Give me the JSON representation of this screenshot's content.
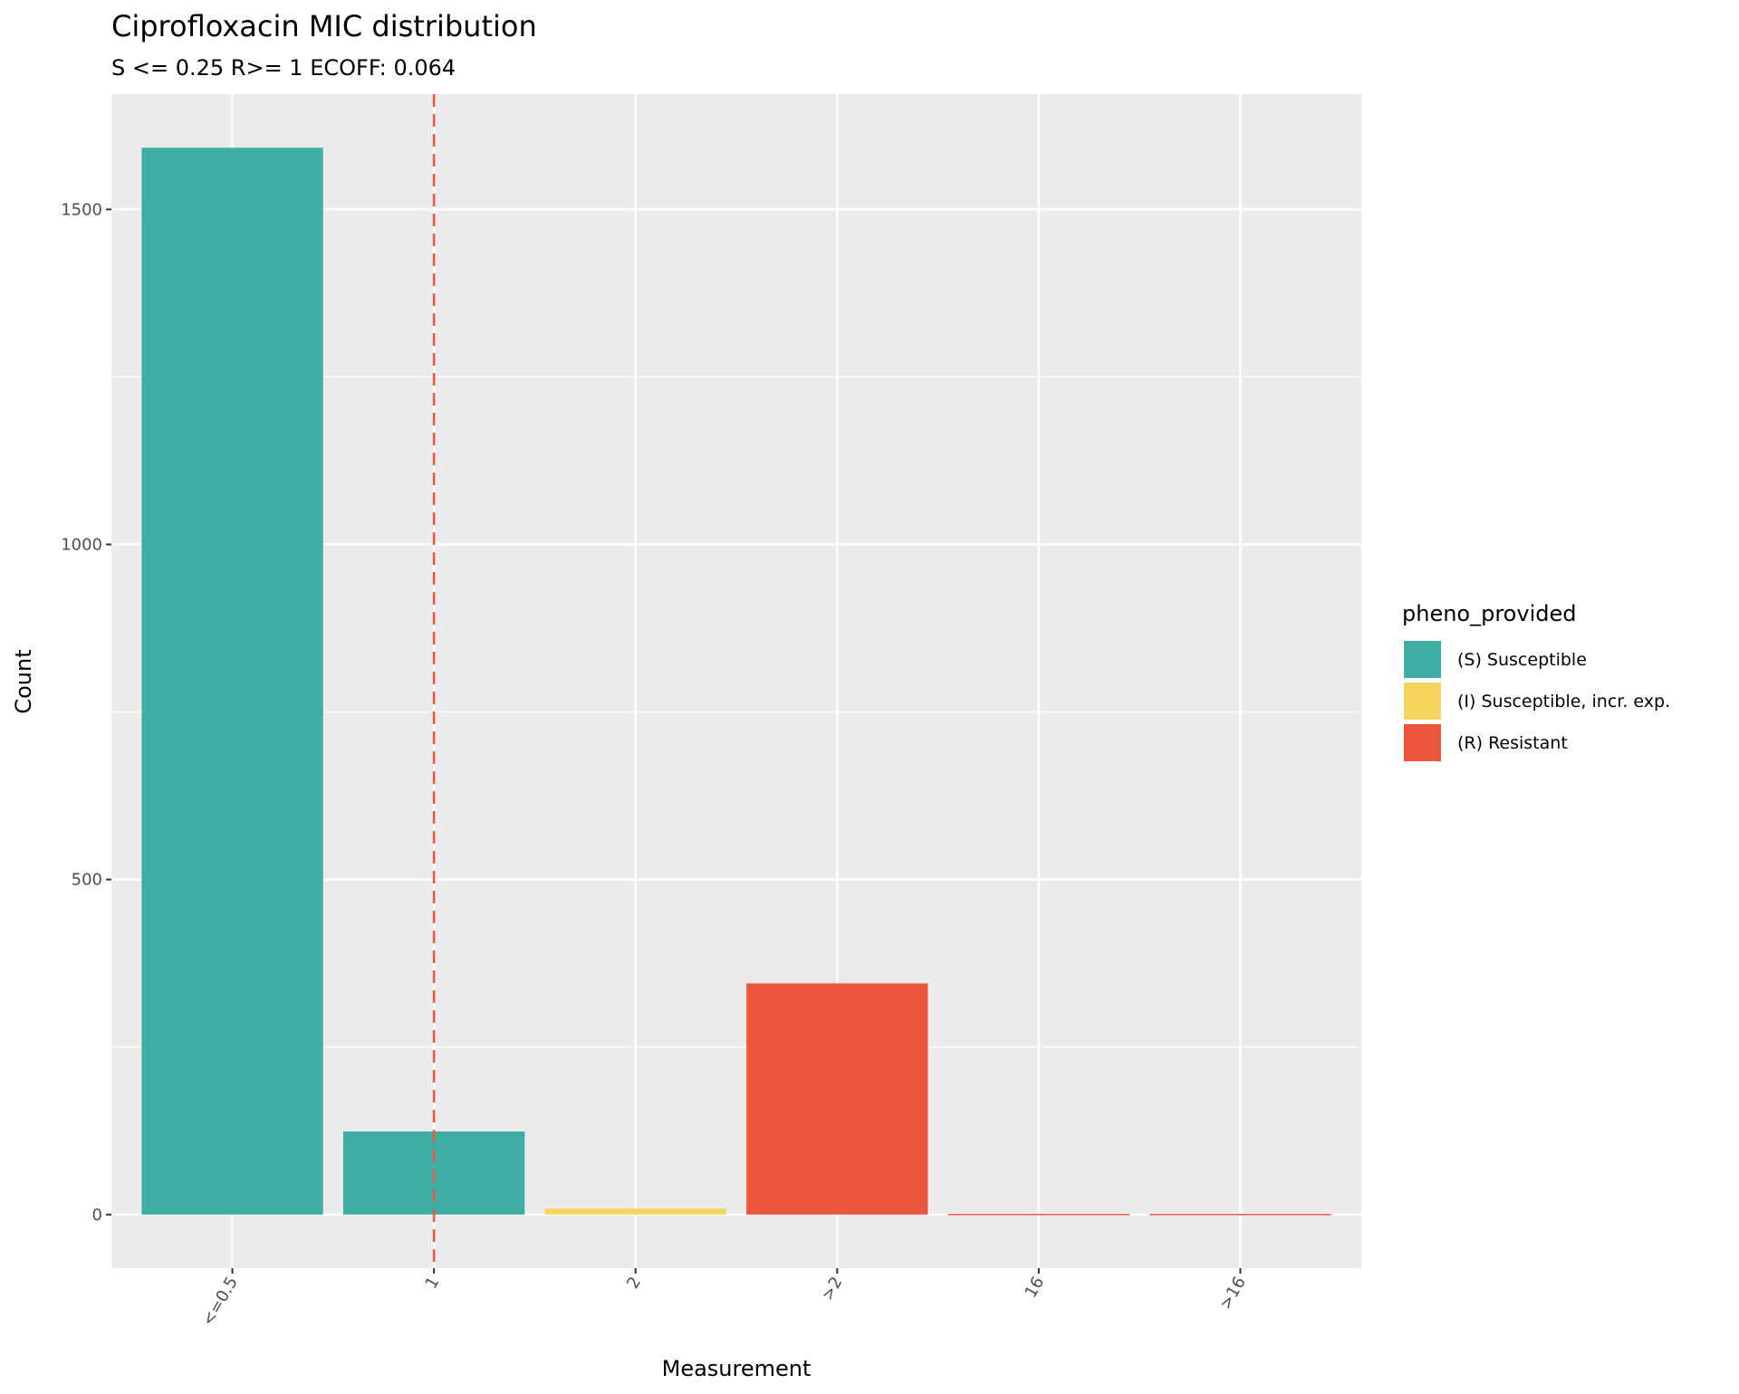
{
  "chart_data": {
    "type": "bar",
    "title": "Ciprofloxacin MIC distribution",
    "subtitle": "S <= 0.25 R>= 1 ECOFF: 0.064",
    "xlabel": "Measurement",
    "ylabel": "Count",
    "categories": [
      "<=0.5",
      "1",
      "2",
      ">2",
      "16",
      ">16"
    ],
    "values": [
      1592,
      124,
      9,
      345,
      1,
      1
    ],
    "bar_groups": [
      "(S) Susceptible",
      "(S) Susceptible",
      "(I) Susceptible, incr. exp.",
      "(R) Resistant",
      "(R) Resistant",
      "(R) Resistant"
    ],
    "ylim": [
      -80,
      1672
    ],
    "yticks": [
      0,
      500,
      1000,
      1500
    ],
    "ytick_labels": [
      "0",
      "500",
      "1000",
      "1500"
    ],
    "grid": true,
    "reference_line": {
      "category": "1",
      "style": "dashed",
      "color": "#EC563B"
    },
    "legend": {
      "title": "pheno_provided",
      "placement": "right",
      "entries": [
        {
          "label": "(S) Susceptible",
          "color": "#3EAEA4"
        },
        {
          "label": "(I) Susceptible, incr. exp.",
          "color": "#F5D55F"
        },
        {
          "label": "(R) Resistant",
          "color": "#EC563B"
        }
      ]
    },
    "panel_background": "#EBEBEB"
  }
}
